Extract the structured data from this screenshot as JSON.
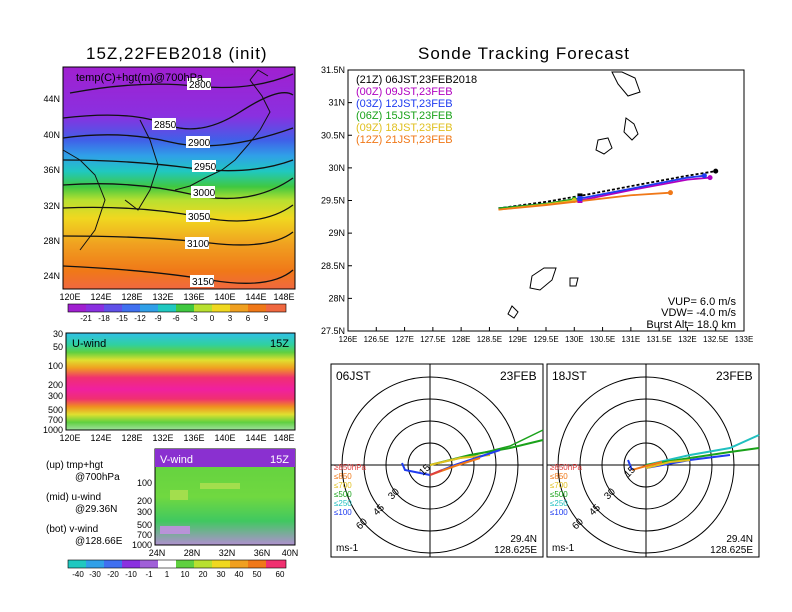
{
  "left_title": "15Z,22FEB2018 (init)",
  "right_title": "Sonde Tracking Forecast",
  "map_panel": {
    "label": "temp(C)+hgt(m)@700hPa",
    "lat_ticks": [
      "44N",
      "40N",
      "36N",
      "32N",
      "28N",
      "24N"
    ],
    "lon_ticks": [
      "120E",
      "124E",
      "128E",
      "132E",
      "136E",
      "140E",
      "144E",
      "148E"
    ],
    "contour_labels": [
      "2800",
      "2850",
      "2900",
      "2950",
      "3000",
      "3050",
      "3100",
      "3150"
    ]
  },
  "temp_colorbar": [
    "-21",
    "-18",
    "-15",
    "-12",
    "-9",
    "-6",
    "-3",
    "0",
    "3",
    "6",
    "9"
  ],
  "uwind_panel": {
    "label": "U-wind",
    "time": "15Z",
    "p_ticks": [
      "30",
      "50",
      "100",
      "200",
      "300",
      "500",
      "700",
      "1000"
    ],
    "lon_ticks": [
      "120E",
      "124E",
      "128E",
      "132E",
      "136E",
      "140E",
      "144E",
      "148E"
    ]
  },
  "vwind_panel": {
    "label": "V-wind",
    "time": "15Z",
    "p_ticks": [
      "100",
      "200",
      "300",
      "500",
      "700",
      "1000"
    ],
    "lat_ticks": [
      "24N",
      "28N",
      "32N",
      "36N",
      "40N"
    ]
  },
  "legend_notes": {
    "up": "(up) tmp+hgt",
    "up2": "@700hPa",
    "mid": "(mid) u-wind",
    "mid2": "@29.36N",
    "bot": "(bot) v-wind",
    "bot2": "@128.66E"
  },
  "wind_colorbar": [
    "-40",
    "-30",
    "-20",
    "-10",
    "-1",
    "1",
    "10",
    "20",
    "30",
    "40",
    "50",
    "60"
  ],
  "track_panel": {
    "legend": [
      {
        "text": "(21Z)  06JST,23FEB2018",
        "color": "#000000"
      },
      {
        "text": "(00Z)  09JST,23FEB",
        "color": "#b000c0"
      },
      {
        "text": "(03Z)  12JST,23FEB",
        "color": "#1f3cf0"
      },
      {
        "text": "(06Z)  15JST,23FEB",
        "color": "#1aa21a"
      },
      {
        "text": "(09Z)  18JST,23FEB",
        "color": "#e0c020"
      },
      {
        "text": "(12Z)  21JST,23FEB",
        "color": "#f07818"
      }
    ],
    "lat_ticks": [
      "31.5N",
      "31N",
      "30.5N",
      "30N",
      "29.5N",
      "29N",
      "28.5N",
      "28N",
      "27.5N"
    ],
    "lon_ticks": [
      "126E",
      "126.5E",
      "127E",
      "127.5E",
      "128E",
      "128.5E",
      "129E",
      "129.5E",
      "130E",
      "130.5E",
      "131E",
      "131.5E",
      "132E",
      "132.5E",
      "133E"
    ],
    "params": {
      "vup": "VUP=  6.0  m/s",
      "vdw": "VDW=  -4.0  m/s",
      "burst": "Burst  Alt=  18.0  km"
    }
  },
  "chart_data": [
    {
      "type": "line",
      "title": "Sonde Tracking Forecast",
      "xlim": [
        126,
        133
      ],
      "ylim": [
        27.5,
        31.5
      ],
      "series": [
        {
          "name": "(21Z) 06JST,23FEB2018",
          "color": "#000000",
          "x": [
            128.66,
            129.5,
            130.1,
            131.0,
            132.0,
            132.5
          ],
          "y": [
            29.38,
            29.48,
            29.57,
            29.72,
            29.88,
            29.95
          ]
        },
        {
          "name": "(00Z) 09JST,23FEB",
          "color": "#b000c0",
          "x": [
            128.66,
            129.5,
            130.1,
            131.0,
            132.0,
            132.4
          ],
          "y": [
            29.37,
            29.44,
            29.5,
            29.66,
            29.82,
            29.85
          ]
        },
        {
          "name": "(03Z) 12JST,23FEB",
          "color": "#1f3cf0",
          "x": [
            128.66,
            129.5,
            130.1,
            131.0,
            132.0,
            132.3
          ],
          "y": [
            29.38,
            29.45,
            29.53,
            29.68,
            29.85,
            29.88
          ]
        },
        {
          "name": "(06Z) 15JST,23FEB",
          "color": "#1aa21a",
          "x": [
            128.66,
            129.5,
            130.0
          ],
          "y": [
            29.38,
            29.45,
            29.52
          ]
        },
        {
          "name": "(09Z) 18JST,23FEB",
          "color": "#e0c020",
          "x": [
            128.66,
            129.5,
            130.0
          ],
          "y": [
            29.36,
            29.44,
            29.5
          ]
        },
        {
          "name": "(12Z) 21JST,23FEB",
          "color": "#f07818",
          "x": [
            128.66,
            129.5,
            130.0,
            131.0,
            131.7
          ],
          "y": [
            29.36,
            29.43,
            29.48,
            29.58,
            29.62
          ]
        }
      ]
    }
  ],
  "polar_left": {
    "title": "06JST",
    "date": "23FEB",
    "unit": "ms-1",
    "lat": "29.4N",
    "lon": "128.625E",
    "ring_labels": [
      "15",
      "30",
      "45",
      "60"
    ],
    "levels": [
      {
        "text": "≥850hPa",
        "color": "#e04040"
      },
      {
        "text": "≤850",
        "color": "#f07818"
      },
      {
        "text": "≤700",
        "color": "#e0c020"
      },
      {
        "text": "≤500",
        "color": "#1aa21a"
      },
      {
        "text": "≤250",
        "color": "#20c0c0"
      },
      {
        "text": "≤100",
        "color": "#1f3cf0"
      }
    ]
  },
  "polar_right": {
    "title": "18JST",
    "date": "23FEB",
    "unit": "ms-1",
    "lat": "29.4N",
    "lon": "128.625E",
    "ring_labels": [
      "15",
      "30",
      "45",
      "60"
    ],
    "levels": [
      {
        "text": "≥850hPa",
        "color": "#e04040"
      },
      {
        "text": "≤850",
        "color": "#f07818"
      },
      {
        "text": "≤700",
        "color": "#e0c020"
      },
      {
        "text": "≤500",
        "color": "#1aa21a"
      },
      {
        "text": "≤250",
        "color": "#20c0c0"
      },
      {
        "text": "≤100",
        "color": "#1f3cf0"
      }
    ]
  }
}
